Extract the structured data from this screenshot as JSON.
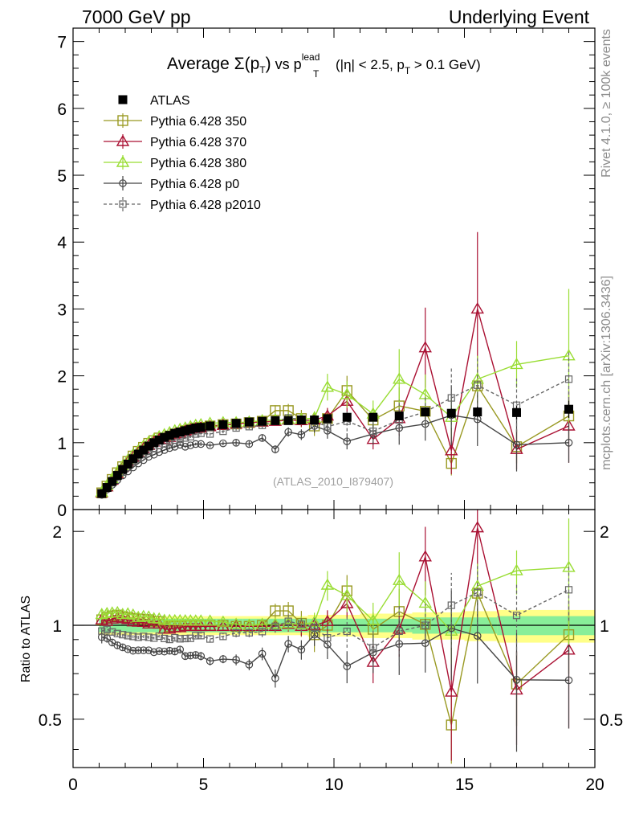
{
  "header": {
    "left": "7000 GeV pp",
    "right": "Underlying Event"
  },
  "side_labels": {
    "rivet": "Rivet 4.1.0, ≥ 100k events",
    "mcplots": "mcplots.cern.ch [arXiv:1306.3436]"
  },
  "chart_data": {
    "type": "line",
    "title": "Average Σ(pT) vs pT lead (|η| < 2.5, pT > 0.1 GeV)",
    "title_parts": {
      "pre": "Average ",
      "sigma": "Σ(p",
      "t": "T",
      "close": ")",
      "vs": " vs p",
      "lead": "lead",
      "cut1": " (|η| < 2.5, p",
      "cut2": " > 0.1 GeV)"
    },
    "watermark": "(ATLAS_2010_I879407)",
    "xlabel": "",
    "ylabel": "",
    "ratio_ylabel": "Ratio to ATLAS",
    "xlim": [
      0,
      20
    ],
    "ylim": [
      0,
      7.2
    ],
    "ratio_ylim": [
      0.35,
      2.35
    ],
    "x_ticks": [
      0,
      5,
      10,
      15,
      20
    ],
    "x_tick_labels": [
      "0",
      "5",
      "10",
      "15",
      "20"
    ],
    "y_ticks": [
      0,
      1,
      2,
      3,
      4,
      5,
      6,
      7
    ],
    "y_tick_labels": [
      "0",
      "1",
      "2",
      "3",
      "4",
      "5",
      "6",
      "7"
    ],
    "ratio_ticks": [
      0.5,
      1,
      2
    ],
    "ratio_tick_labels": [
      "0.5",
      "1",
      "2"
    ],
    "x": [
      1.1,
      1.3,
      1.5,
      1.7,
      1.9,
      2.1,
      2.3,
      2.5,
      2.7,
      2.9,
      3.1,
      3.3,
      3.5,
      3.7,
      3.9,
      4.1,
      4.3,
      4.5,
      4.7,
      4.9,
      5.25,
      5.75,
      6.25,
      6.75,
      7.25,
      7.75,
      8.25,
      8.75,
      9.25,
      9.75,
      10.5,
      11.5,
      12.5,
      13.5,
      14.5,
      15.5,
      17,
      19
    ],
    "data": {
      "name": "ATLAS",
      "y": [
        0.24,
        0.33,
        0.42,
        0.51,
        0.6,
        0.68,
        0.76,
        0.83,
        0.89,
        0.95,
        1.0,
        1.04,
        1.08,
        1.11,
        1.14,
        1.16,
        1.18,
        1.2,
        1.22,
        1.23,
        1.25,
        1.27,
        1.29,
        1.31,
        1.32,
        1.33,
        1.33,
        1.34,
        1.34,
        1.36,
        1.38,
        1.38,
        1.4,
        1.46,
        1.44,
        1.46,
        1.45,
        1.5
      ],
      "err": [
        0.02,
        0.02,
        0.02,
        0.02,
        0.02,
        0.02,
        0.02,
        0.02,
        0.02,
        0.02,
        0.02,
        0.02,
        0.02,
        0.02,
        0.02,
        0.02,
        0.02,
        0.02,
        0.02,
        0.02,
        0.02,
        0.02,
        0.02,
        0.02,
        0.02,
        0.02,
        0.03,
        0.03,
        0.03,
        0.03,
        0.04,
        0.04,
        0.05,
        0.06,
        0.07,
        0.08,
        0.1,
        0.13
      ]
    },
    "band_inner": [
      0.05,
      0.05,
      0.05,
      0.05,
      0.05,
      0.05,
      0.05,
      0.05,
      0.05,
      0.05,
      0.05,
      0.05,
      0.05,
      0.05,
      0.05,
      0.05,
      0.05,
      0.05,
      0.05,
      0.05,
      0.05,
      0.05,
      0.05,
      0.05,
      0.05,
      0.05,
      0.05,
      0.05,
      0.05,
      0.05,
      0.05,
      0.05,
      0.05,
      0.06,
      0.06,
      0.06,
      0.07,
      0.07
    ],
    "band_outer": [
      0.07,
      0.07,
      0.07,
      0.07,
      0.07,
      0.07,
      0.07,
      0.07,
      0.07,
      0.07,
      0.07,
      0.07,
      0.07,
      0.07,
      0.07,
      0.07,
      0.07,
      0.07,
      0.07,
      0.07,
      0.07,
      0.07,
      0.07,
      0.07,
      0.07,
      0.07,
      0.07,
      0.07,
      0.08,
      0.08,
      0.08,
      0.09,
      0.09,
      0.1,
      0.1,
      0.11,
      0.12,
      0.12
    ],
    "series": [
      {
        "name": "Pythia 6.428 350",
        "color": "#999922",
        "marker": "square",
        "dash": false,
        "y": [
          0.25,
          0.35,
          0.45,
          0.55,
          0.64,
          0.72,
          0.8,
          0.87,
          0.93,
          0.99,
          1.03,
          1.07,
          1.06,
          1.1,
          1.13,
          1.15,
          1.18,
          1.2,
          1.22,
          1.23,
          1.25,
          1.27,
          1.28,
          1.3,
          1.32,
          1.48,
          1.48,
          1.36,
          1.25,
          1.36,
          1.78,
          1.34,
          1.55,
          1.47,
          0.69,
          1.85,
          0.94,
          1.4
        ],
        "err": [
          0.01,
          0.01,
          0.01,
          0.01,
          0.01,
          0.01,
          0.01,
          0.01,
          0.01,
          0.01,
          0.01,
          0.01,
          0.01,
          0.01,
          0.02,
          0.02,
          0.02,
          0.02,
          0.02,
          0.02,
          0.03,
          0.03,
          0.03,
          0.04,
          0.05,
          0.08,
          0.1,
          0.13,
          0.15,
          0.15,
          0.22,
          0.18,
          0.28,
          0.25,
          0.18,
          0.3,
          0.25,
          0.35
        ]
      },
      {
        "name": "Pythia 6.428 370",
        "color": "#aa1133",
        "marker": "triangle",
        "dash": false,
        "y": [
          0.25,
          0.34,
          0.44,
          0.54,
          0.63,
          0.71,
          0.78,
          0.85,
          0.91,
          0.96,
          1.01,
          1.05,
          1.05,
          1.08,
          1.12,
          1.14,
          1.17,
          1.19,
          1.21,
          1.22,
          1.24,
          1.26,
          1.28,
          1.3,
          1.31,
          1.32,
          1.34,
          1.33,
          1.34,
          1.4,
          1.62,
          1.05,
          1.36,
          2.42,
          0.88,
          3.0,
          0.9,
          1.25
        ],
        "err": [
          0.01,
          0.01,
          0.01,
          0.01,
          0.01,
          0.01,
          0.01,
          0.01,
          0.01,
          0.01,
          0.01,
          0.01,
          0.01,
          0.01,
          0.02,
          0.02,
          0.02,
          0.02,
          0.02,
          0.02,
          0.03,
          0.03,
          0.03,
          0.04,
          0.05,
          0.06,
          0.07,
          0.09,
          0.1,
          0.12,
          0.16,
          0.15,
          0.25,
          0.6,
          0.35,
          1.15,
          0.3,
          0.55
        ]
      },
      {
        "name": "Pythia 6.428 380",
        "color": "#99dd33",
        "marker": "triangle",
        "dash": false,
        "y": [
          0.26,
          0.36,
          0.46,
          0.56,
          0.65,
          0.74,
          0.82,
          0.88,
          0.95,
          1.01,
          1.05,
          1.09,
          1.12,
          1.15,
          1.18,
          1.2,
          1.22,
          1.24,
          1.26,
          1.27,
          1.29,
          1.3,
          1.3,
          1.31,
          1.33,
          1.34,
          1.35,
          1.35,
          1.37,
          1.83,
          1.72,
          1.43,
          1.95,
          1.72,
          1.38,
          1.95,
          2.17,
          2.3
        ],
        "err": [
          0.01,
          0.01,
          0.01,
          0.01,
          0.01,
          0.01,
          0.01,
          0.01,
          0.01,
          0.01,
          0.01,
          0.01,
          0.01,
          0.01,
          0.02,
          0.02,
          0.02,
          0.02,
          0.02,
          0.02,
          0.03,
          0.03,
          0.03,
          0.04,
          0.05,
          0.06,
          0.07,
          0.08,
          0.1,
          0.2,
          0.2,
          0.2,
          0.45,
          0.3,
          0.3,
          0.35,
          0.35,
          1.0
        ]
      },
      {
        "name": "Pythia 6.428 p0",
        "color": "#444444",
        "marker": "circle",
        "dash": false,
        "y": [
          0.22,
          0.3,
          0.37,
          0.44,
          0.51,
          0.57,
          0.63,
          0.69,
          0.74,
          0.79,
          0.82,
          0.86,
          0.89,
          0.92,
          0.94,
          0.97,
          0.94,
          0.96,
          0.98,
          0.98,
          0.96,
          0.99,
          1.0,
          0.98,
          1.07,
          0.9,
          1.16,
          1.12,
          1.25,
          1.18,
          1.02,
          1.13,
          1.22,
          1.28,
          1.41,
          1.35,
          0.97,
          1.0
        ],
        "err": [
          0.01,
          0.01,
          0.01,
          0.01,
          0.01,
          0.01,
          0.01,
          0.01,
          0.01,
          0.01,
          0.01,
          0.01,
          0.01,
          0.02,
          0.02,
          0.02,
          0.02,
          0.02,
          0.02,
          0.03,
          0.03,
          0.03,
          0.04,
          0.04,
          0.05,
          0.06,
          0.07,
          0.08,
          0.1,
          0.12,
          0.12,
          0.16,
          0.25,
          0.25,
          0.45,
          0.4,
          0.4,
          0.3
        ]
      },
      {
        "name": "Pythia 6.428 p2010",
        "color": "#666666",
        "marker": "square_small",
        "dash": true,
        "y": [
          0.23,
          0.32,
          0.4,
          0.48,
          0.56,
          0.63,
          0.7,
          0.76,
          0.82,
          0.87,
          0.91,
          0.96,
          0.98,
          1.0,
          1.04,
          1.05,
          1.07,
          1.09,
          1.13,
          1.14,
          1.13,
          1.17,
          1.22,
          1.24,
          1.26,
          1.32,
          1.37,
          1.35,
          1.32,
          1.24,
          1.32,
          1.17,
          1.34,
          1.46,
          1.67,
          1.86,
          1.56,
          1.95
        ],
        "err": [
          0.01,
          0.01,
          0.01,
          0.01,
          0.01,
          0.01,
          0.01,
          0.01,
          0.01,
          0.01,
          0.01,
          0.01,
          0.01,
          0.02,
          0.02,
          0.02,
          0.02,
          0.02,
          0.02,
          0.03,
          0.03,
          0.03,
          0.04,
          0.04,
          0.05,
          0.06,
          0.07,
          0.08,
          0.1,
          0.12,
          0.15,
          0.16,
          0.3,
          0.25,
          0.45,
          0.4,
          0.4,
          0.4
        ]
      }
    ]
  }
}
